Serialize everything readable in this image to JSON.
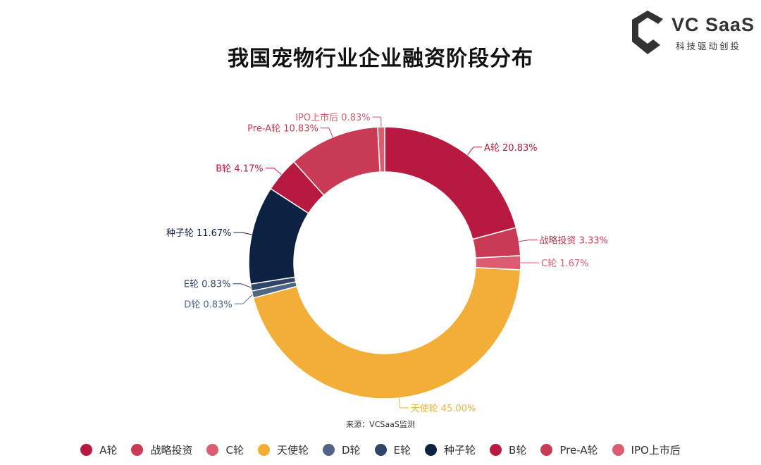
{
  "header": {
    "title": "我国宠物行业企业融资阶段分布"
  },
  "brand": {
    "name": "VC SaaS",
    "tagline": "科技驱动创投"
  },
  "footer": {
    "source": "来源：VCSaaS监测"
  },
  "chart_data": {
    "type": "pie",
    "style": "donut",
    "title": "我国宠物行业企业融资阶段分布",
    "legend_position": "bottom",
    "slices": [
      {
        "name": "A轮",
        "value": 20.83,
        "label": "A轮 20.83%",
        "color": "#b8193f"
      },
      {
        "name": "战略投资",
        "value": 3.33,
        "label": "战略投资 3.33%",
        "color": "#c93b55"
      },
      {
        "name": "C轮",
        "value": 1.67,
        "label": "C轮 1.67%",
        "color": "#da5d72"
      },
      {
        "name": "天使轮",
        "value": 45.0,
        "label": "天使轮 45.00%",
        "color": "#f2ae36"
      },
      {
        "name": "D轮",
        "value": 0.83,
        "label": "D轮 0.83%",
        "color": "#4f6585"
      },
      {
        "name": "E轮",
        "value": 0.83,
        "label": "E轮 0.83%",
        "color": "#2f4466"
      },
      {
        "name": "种子轮",
        "value": 11.67,
        "label": "种子轮 11.67%",
        "color": "#0d2142"
      },
      {
        "name": "B轮",
        "value": 4.17,
        "label": "B轮 4.17%",
        "color": "#b8193f"
      },
      {
        "name": "Pre-A轮",
        "value": 10.83,
        "label": "Pre-A轮 10.83%",
        "color": "#c93b55"
      },
      {
        "name": "IPO上市后",
        "value": 0.83,
        "label": "IPO上市后 0.83%",
        "color": "#da5d72"
      }
    ]
  }
}
